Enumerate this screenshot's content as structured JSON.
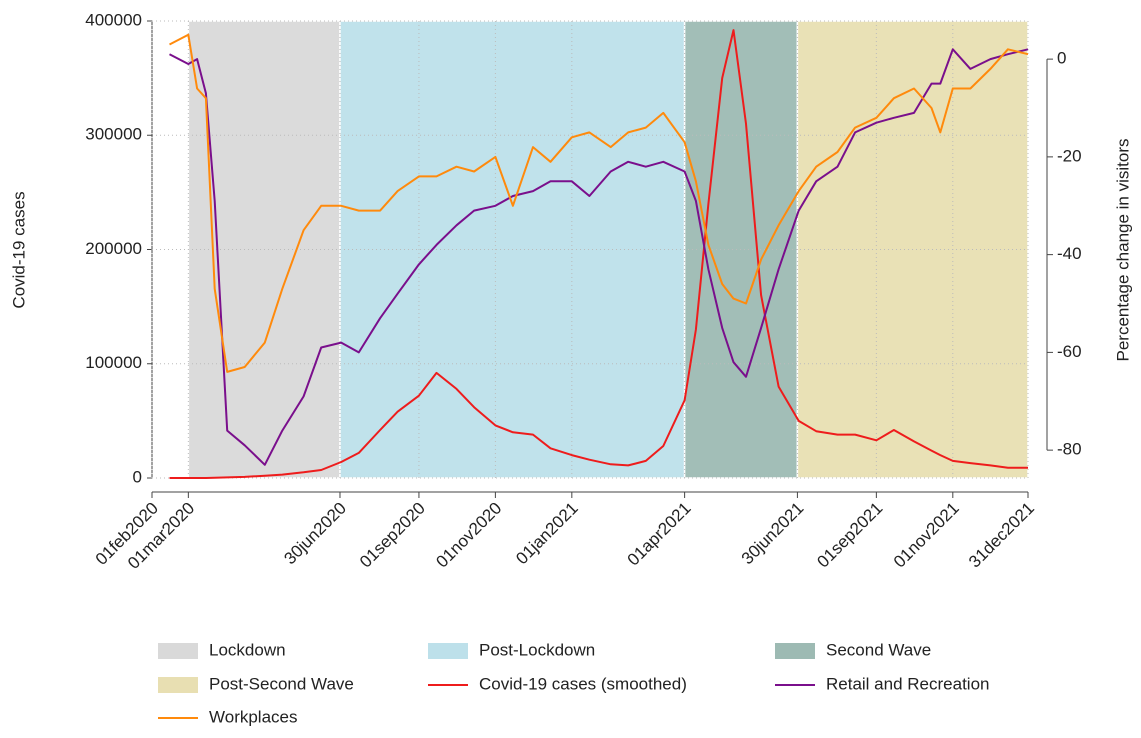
{
  "chart_data": {
    "type": "line",
    "ylabel": "Covid-19 cases",
    "y2label": "Percentage change in visitors",
    "xlim": [
      "2020-02-01",
      "2021-12-31"
    ],
    "xticks": [
      {
        "value": "2020-02-01",
        "label": "01feb2020"
      },
      {
        "value": "2020-03-01",
        "label": "01mar2020"
      },
      {
        "value": "2020-06-30",
        "label": "30jun2020"
      },
      {
        "value": "2020-09-01",
        "label": "01sep2020"
      },
      {
        "value": "2020-11-01",
        "label": "01nov2020"
      },
      {
        "value": "2021-01-01",
        "label": "01jan2021"
      },
      {
        "value": "2021-04-01",
        "label": "01apr2021"
      },
      {
        "value": "2021-06-30",
        "label": "30jun2021"
      },
      {
        "value": "2021-09-01",
        "label": "01sep2021"
      },
      {
        "value": "2021-11-01",
        "label": "01nov2021"
      },
      {
        "value": "2021-12-31",
        "label": "31dec2021"
      }
    ],
    "ylim": [
      0,
      400000
    ],
    "yticks": [
      0,
      100000,
      200000,
      300000,
      400000
    ],
    "y2lim": [
      -85.7,
      7.8
    ],
    "y2ticks": [
      0,
      -20,
      -40,
      -60,
      -80
    ],
    "grid": true,
    "regions": [
      {
        "name": "Lockdown",
        "color": "#d9d9d9",
        "start": "2020-03-01",
        "end": "2020-06-30"
      },
      {
        "name": "Post-Lockdown",
        "color": "#bde0ea",
        "start": "2020-06-30",
        "end": "2021-04-01"
      },
      {
        "name": "Second Wave",
        "color": "#9dbab3",
        "start": "2021-04-01",
        "end": "2021-06-30"
      },
      {
        "name": "Post-Second Wave",
        "color": "#e8dfb2",
        "start": "2021-06-30",
        "end": "2021-12-31"
      }
    ],
    "x": [
      "2020-02-15",
      "2020-03-01",
      "2020-03-08",
      "2020-03-15",
      "2020-03-22",
      "2020-04-01",
      "2020-04-15",
      "2020-05-01",
      "2020-05-15",
      "2020-06-01",
      "2020-06-15",
      "2020-07-01",
      "2020-07-15",
      "2020-08-01",
      "2020-08-15",
      "2020-09-01",
      "2020-09-15",
      "2020-10-01",
      "2020-10-15",
      "2020-11-01",
      "2020-11-15",
      "2020-12-01",
      "2020-12-15",
      "2021-01-01",
      "2021-01-15",
      "2021-02-01",
      "2021-02-15",
      "2021-03-01",
      "2021-03-15",
      "2021-04-01",
      "2021-04-10",
      "2021-04-20",
      "2021-05-01",
      "2021-05-10",
      "2021-05-20",
      "2021-06-01",
      "2021-06-15",
      "2021-07-01",
      "2021-07-15",
      "2021-08-01",
      "2021-08-15",
      "2021-09-01",
      "2021-09-15",
      "2021-10-01",
      "2021-10-15",
      "2021-10-22",
      "2021-11-01",
      "2021-11-15",
      "2021-12-01",
      "2021-12-15",
      "2021-12-31"
    ],
    "series": [
      {
        "name": "Covid-19 cases (smoothed)",
        "color": "#ee1c1c",
        "axis": "y",
        "values": [
          0,
          0,
          0,
          0,
          200,
          500,
          1000,
          2000,
          3000,
          5000,
          7000,
          14000,
          22000,
          42000,
          58000,
          72000,
          92000,
          78000,
          62000,
          46000,
          40000,
          38000,
          26000,
          20000,
          16000,
          12000,
          11000,
          15000,
          28000,
          68000,
          130000,
          240000,
          350000,
          392000,
          310000,
          160000,
          80000,
          50000,
          41000,
          38000,
          38000,
          33000,
          42000,
          32000,
          24000,
          20000,
          15000,
          13000,
          11000,
          9000,
          9000
        ]
      },
      {
        "name": "Retail and Recreation",
        "color": "#7a0f8c",
        "axis": "y2",
        "values": [
          1,
          -1,
          0,
          -7,
          -29,
          -76,
          -79,
          -83,
          -76,
          -69,
          -59,
          -58,
          -60,
          -53,
          -48,
          -42,
          -38,
          -34,
          -31,
          -30,
          -28,
          -27,
          -25,
          -25,
          -28,
          -23,
          -21,
          -22,
          -21,
          -23,
          -29,
          -43,
          -55,
          -62,
          -65,
          -55,
          -43,
          -31,
          -25,
          -22,
          -15,
          -13,
          -12,
          -11,
          -5,
          -5,
          2,
          -2,
          0,
          1,
          2
        ]
      },
      {
        "name": "Workplaces",
        "color": "#ff8a0c",
        "axis": "y2",
        "values": [
          3,
          5,
          -6,
          -8,
          -47,
          -64,
          -63,
          -58,
          -47,
          -35,
          -30,
          -30,
          -31,
          -31,
          -27,
          -24,
          -24,
          -22,
          -23,
          -20,
          -30,
          -18,
          -21,
          -16,
          -15,
          -18,
          -15,
          -14,
          -11,
          -17,
          -25,
          -38,
          -46,
          -49,
          -50,
          -41,
          -34,
          -27,
          -22,
          -19,
          -14,
          -12,
          -8,
          -6,
          -10,
          -15,
          -6,
          -6,
          -2,
          2,
          1
        ]
      }
    ]
  }
}
